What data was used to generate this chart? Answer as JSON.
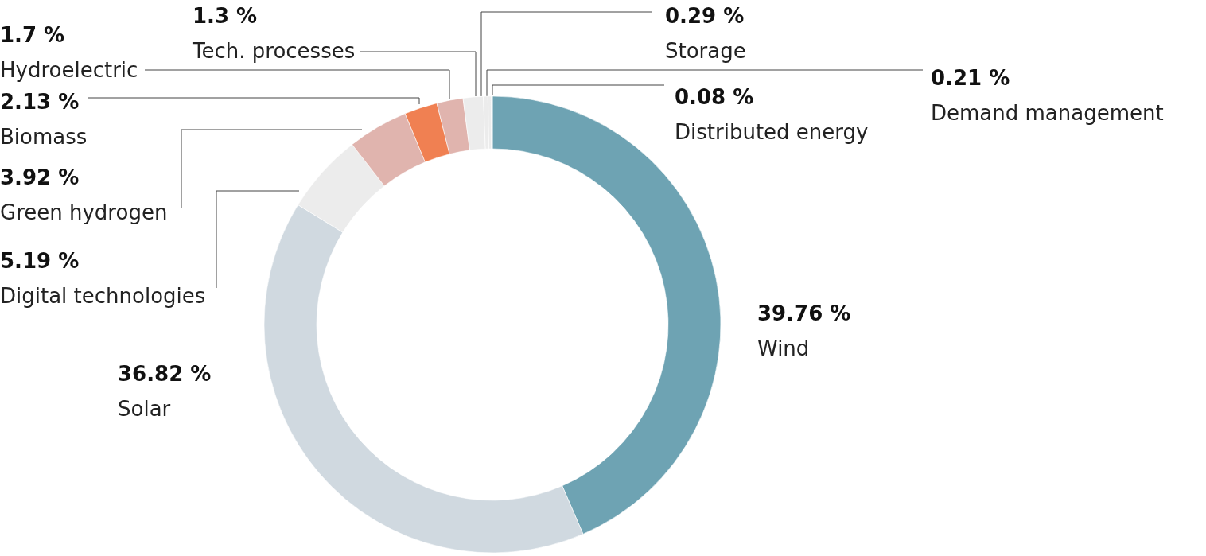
{
  "chart_data": {
    "type": "donut",
    "categories": [
      "Wind",
      "Solar",
      "Digital technologies",
      "Green hydrogen",
      "Biomass",
      "Hydroelectric",
      "Tech. processes",
      "Storage",
      "Demand management",
      "Distributed energy"
    ],
    "values": [
      39.76,
      36.82,
      5.19,
      3.92,
      2.13,
      1.7,
      1.3,
      0.29,
      0.21,
      0.08
    ],
    "colors": [
      "#6ea3b3",
      "#d0d9e0",
      "#ececec",
      "#e0b4ae",
      "#f08052",
      "#e0b4ae",
      "#ececec",
      "#ececec",
      "#ececec",
      "#ececec"
    ],
    "value_labels": [
      "39.76 %",
      "36.82 %",
      "5.19 %",
      "3.92 %",
      "2.13 %",
      "1.7 %",
      "1.3 %",
      "0.29 %",
      "0.21 %",
      "0.08 %"
    ],
    "legend": false
  }
}
